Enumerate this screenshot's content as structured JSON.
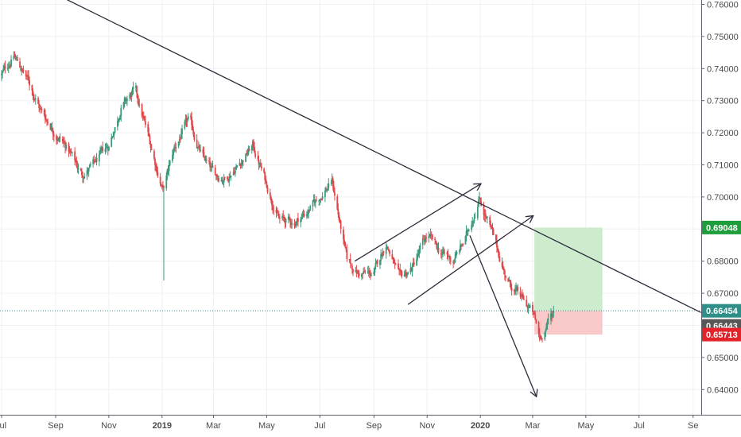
{
  "chart_data": {
    "type": "candlestick",
    "instrument_note": "",
    "y_axis": {
      "ticks": [
        "0.76000",
        "0.75000",
        "0.74000",
        "0.73000",
        "0.72000",
        "0.71000",
        "0.70000",
        "0.69000",
        "0.68000",
        "0.67000",
        "0.66000",
        "0.65000",
        "0.64000"
      ],
      "range": [
        0.6325,
        0.7615
      ]
    },
    "x_axis": {
      "labels": [
        {
          "text": "Jul",
          "bold": false
        },
        {
          "text": "Sep",
          "bold": false
        },
        {
          "text": "Nov",
          "bold": false
        },
        {
          "text": "2019",
          "bold": true
        },
        {
          "text": "Mar",
          "bold": false
        },
        {
          "text": "May",
          "bold": false
        },
        {
          "text": "Jul",
          "bold": false
        },
        {
          "text": "Sep",
          "bold": false
        },
        {
          "text": "Nov",
          "bold": false
        },
        {
          "text": "2020",
          "bold": true
        },
        {
          "text": "Mar",
          "bold": false
        },
        {
          "text": "May",
          "bold": false
        },
        {
          "text": "Jul",
          "bold": false
        },
        {
          "text": "Se",
          "bold": false
        }
      ]
    },
    "price_path": [
      [
        "2018-07-01",
        0.738
      ],
      [
        "2018-07-15",
        0.744
      ],
      [
        "2018-08-01",
        0.736
      ],
      [
        "2018-08-15",
        0.727
      ],
      [
        "2018-09-01",
        0.72
      ],
      [
        "2018-09-15",
        0.715
      ],
      [
        "2018-10-01",
        0.707
      ],
      [
        "2018-10-15",
        0.71
      ],
      [
        "2018-11-01",
        0.716
      ],
      [
        "2018-11-15",
        0.728
      ],
      [
        "2018-12-01",
        0.733
      ],
      [
        "2018-12-15",
        0.72
      ],
      [
        "2019-01-02",
        0.702
      ],
      [
        "2019-01-15",
        0.715
      ],
      [
        "2019-02-01",
        0.724
      ],
      [
        "2019-02-15",
        0.713
      ],
      [
        "2019-03-01",
        0.707
      ],
      [
        "2019-03-15",
        0.706
      ],
      [
        "2019-04-01",
        0.711
      ],
      [
        "2019-04-15",
        0.716
      ],
      [
        "2019-05-01",
        0.704
      ],
      [
        "2019-05-15",
        0.693
      ],
      [
        "2019-06-01",
        0.692
      ],
      [
        "2019-06-15",
        0.695
      ],
      [
        "2019-07-01",
        0.7
      ],
      [
        "2019-07-15",
        0.705
      ],
      [
        "2019-08-01",
        0.68
      ],
      [
        "2019-08-15",
        0.676
      ],
      [
        "2019-09-01",
        0.676
      ],
      [
        "2019-09-15",
        0.686
      ],
      [
        "2019-10-01",
        0.674
      ],
      [
        "2019-10-15",
        0.678
      ],
      [
        "2019-11-01",
        0.688
      ],
      [
        "2019-11-15",
        0.683
      ],
      [
        "2019-12-01",
        0.68
      ],
      [
        "2019-12-15",
        0.687
      ],
      [
        "2019-12-31",
        0.7
      ],
      [
        "2020-01-15",
        0.688
      ],
      [
        "2020-02-01",
        0.674
      ],
      [
        "2020-02-15",
        0.669
      ],
      [
        "2020-03-01",
        0.664
      ],
      [
        "2020-03-09",
        0.656
      ],
      [
        "2020-03-19",
        0.661
      ],
      [
        "2020-03-25",
        0.6644
      ]
    ],
    "spike_lows": [
      {
        "date": "2019-01-03",
        "low": 0.674
      }
    ],
    "trendlines": [
      {
        "from": [
          "2018-09-10",
          0.762
        ],
        "to": [
          "2020-09-10",
          0.664
        ]
      },
      {
        "from": [
          "2019-08-10",
          0.68
        ],
        "to": [
          "2020-01-01",
          0.704
        ]
      },
      {
        "from": [
          "2019-10-10",
          0.6665
        ],
        "to": [
          "2020-03-01",
          0.694
        ]
      },
      {
        "from": [
          "2019-12-20",
          0.688
        ],
        "to": [
          "2020-03-05",
          0.638
        ]
      }
    ],
    "position_tool": {
      "start": "2020-03-03",
      "end": "2020-05-20",
      "entry": 0.66454,
      "target": 0.69048,
      "stop": 0.65713
    },
    "current_price_line": 0.66454,
    "price_labels": [
      {
        "text": "0.69048",
        "value": 0.69048,
        "color": "#1e9e3a"
      },
      {
        "text": "0.66454",
        "value": 0.66454,
        "color": "#2d8f88"
      },
      {
        "text": "0.66443",
        "value": 0.66443,
        "color": "#575757"
      },
      {
        "text": "0.65713",
        "value": 0.65713,
        "color": "#e3222a"
      }
    ],
    "colors": {
      "up": "#3a9a7c",
      "down": "#e2474a",
      "trendline": "#2b2b3b",
      "profit_zone": "#cdeccd",
      "loss_zone": "#f9c9c9",
      "price_line": "#2d8f88"
    },
    "grid": true
  }
}
